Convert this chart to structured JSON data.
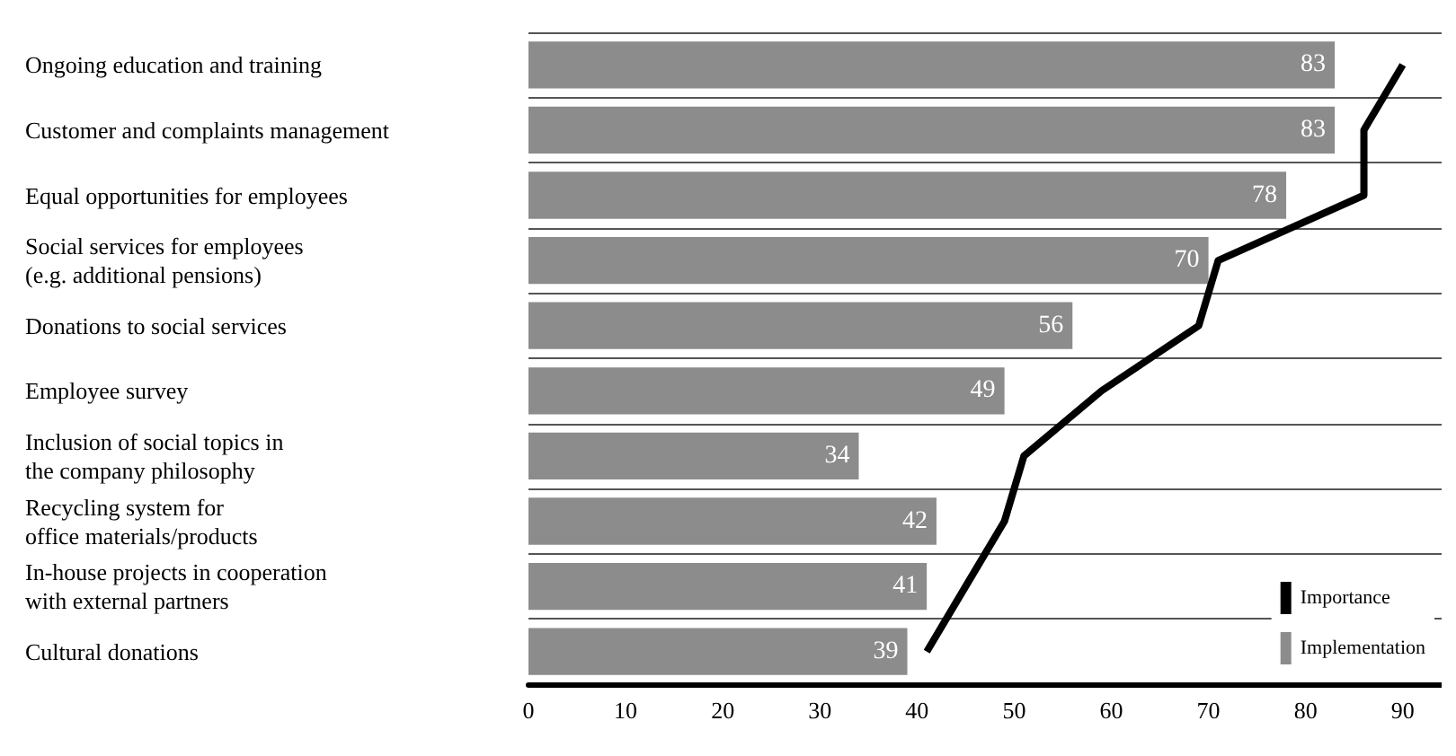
{
  "chart_data": {
    "type": "bar",
    "orientation": "horizontal",
    "categories": [
      "Ongoing education and training",
      "Customer and complaints management",
      "Equal opportunities for employees",
      "Social services for employees\n(e.g. additional pensions)",
      "Donations to social services",
      "Employee survey",
      "Inclusion of social topics in\nthe company philosophy",
      "Recycling system for\noffice materials/products",
      "In-house projects in cooperation\nwith external partners",
      "Cultural donations"
    ],
    "series": [
      {
        "name": "Importance",
        "type": "line",
        "color": "#000000",
        "values": [
          90,
          86,
          86,
          71,
          69,
          59,
          51,
          49,
          45,
          41
        ]
      },
      {
        "name": "Implementation",
        "color": "#8c8c8c",
        "values": [
          83,
          83,
          78,
          70,
          56,
          49,
          34,
          42,
          41,
          39
        ],
        "value_labels": [
          "83",
          "83",
          "78",
          "70",
          "56",
          "49",
          "34",
          "42",
          "41",
          "39"
        ]
      }
    ],
    "xlim": [
      0,
      94
    ],
    "xticks": [
      0,
      10,
      20,
      30,
      40,
      50,
      60,
      70,
      80,
      90
    ],
    "grid": "y",
    "legend": "bottom right",
    "marker": "none"
  }
}
